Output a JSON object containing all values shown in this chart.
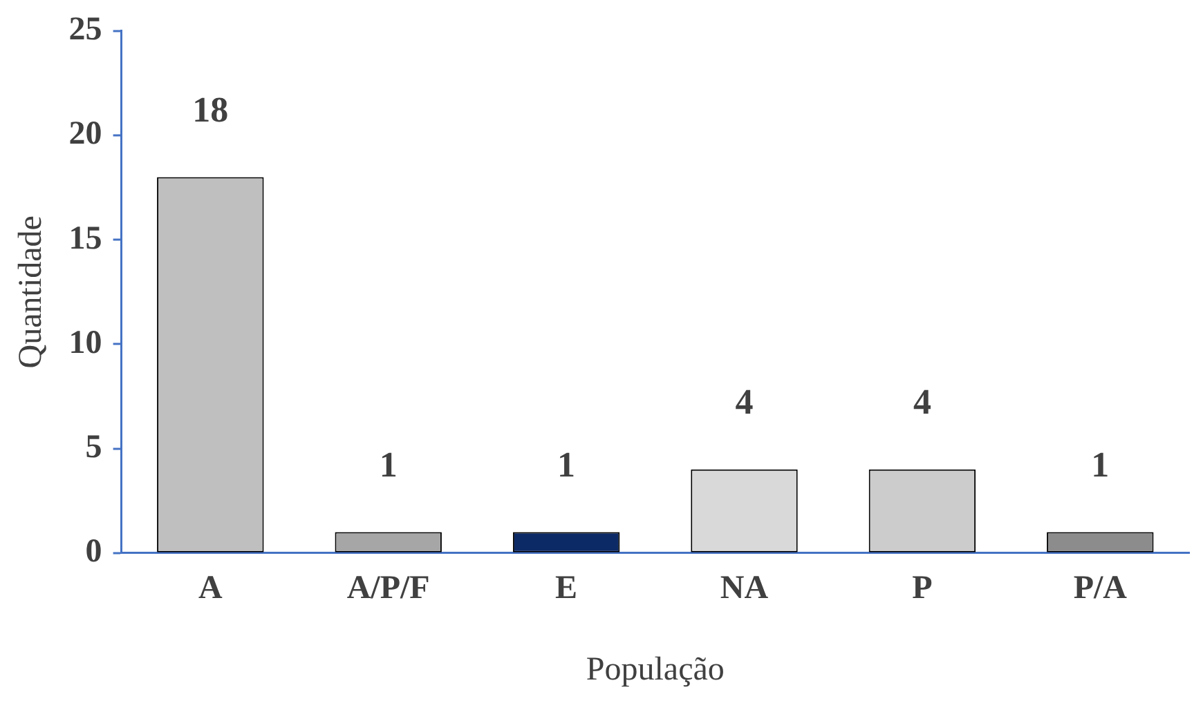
{
  "chart_data": {
    "type": "bar",
    "xlabel": "População",
    "ylabel": "Quantidade",
    "categories": [
      "A",
      "A/P/F",
      "E",
      "NA",
      "P",
      "P/A"
    ],
    "values": [
      18,
      1,
      1,
      4,
      4,
      1
    ],
    "colors": [
      "#bfbfbf",
      "#a6a6a6",
      "#0c2a66",
      "#d9d9d9",
      "#cccccc",
      "#8c8c8c"
    ],
    "ylim": [
      0,
      25
    ],
    "yticks": [
      0,
      5,
      10,
      15,
      20,
      25
    ],
    "grid": false,
    "legend": false,
    "data_labels": true
  }
}
